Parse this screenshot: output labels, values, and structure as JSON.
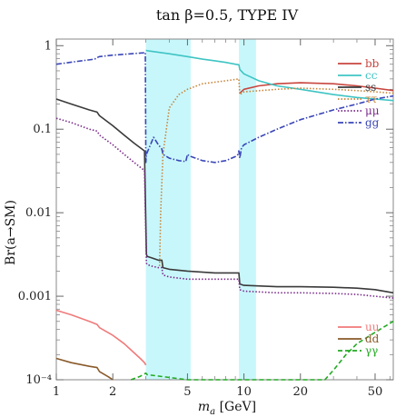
{
  "chart_data": {
    "type": "line",
    "title": "tan β=0.5, TYPE IV",
    "xlabel": "m_a [GeV]",
    "ylabel": "Br(a→SM)",
    "xscale": "log",
    "yscale": "log",
    "xlim": [
      1,
      62.5
    ],
    "ylim": [
      0.0001,
      1.2
    ],
    "xticks": [
      {
        "value": 1,
        "label": "1"
      },
      {
        "value": 2,
        "label": "2"
      },
      {
        "value": 5,
        "label": "5"
      },
      {
        "value": 10,
        "label": "10"
      },
      {
        "value": 20,
        "label": "20"
      },
      {
        "value": 50,
        "label": "50"
      }
    ],
    "yticks": [
      {
        "value": 1,
        "label": "1"
      },
      {
        "value": 0.1,
        "label": "0.1"
      },
      {
        "value": 0.01,
        "label": "0.01"
      },
      {
        "value": 0.001,
        "label": "0.001"
      },
      {
        "value": 0.0001,
        "label": "10⁻⁴"
      }
    ],
    "shaded_bands": [
      {
        "x": [
          3.0,
          5.2
        ],
        "color": "#c8f7fb"
      },
      {
        "x": [
          9.4,
          11.6
        ],
        "color": "#c8f7fb"
      }
    ],
    "legend_upper": "top-right",
    "legend_lower": "bottom-right",
    "series": [
      {
        "name": "bb",
        "color": "#c8463f",
        "dash": "solid",
        "legend": "upper",
        "x": [
          9.5,
          10,
          12,
          15,
          20,
          30,
          40,
          50,
          62.5
        ],
        "y": [
          0.27,
          0.3,
          0.33,
          0.35,
          0.36,
          0.35,
          0.33,
          0.31,
          0.29
        ]
      },
      {
        "name": "cc",
        "color": "#3fc4c4",
        "dash": "solid",
        "legend": "upper",
        "x": [
          3.0,
          3.05,
          4,
          5,
          6,
          7,
          8,
          9,
          9.4,
          9.5,
          10,
          12,
          15,
          20,
          30,
          40,
          50,
          62.5
        ],
        "y": [
          0.88,
          0.87,
          0.8,
          0.74,
          0.69,
          0.66,
          0.63,
          0.6,
          0.59,
          0.52,
          0.46,
          0.38,
          0.33,
          0.3,
          0.26,
          0.24,
          0.23,
          0.22
        ]
      },
      {
        "name": "ss",
        "color": "#3a3a3a",
        "dash": "solid",
        "legend": "upper",
        "x": [
          1,
          1.2,
          1.5,
          1.65,
          1.7,
          2,
          2.3,
          2.6,
          2.8,
          2.95,
          3.02,
          3.05,
          3.2,
          3.5,
          3.65,
          3.7,
          4,
          5,
          7,
          9,
          9.4,
          9.5,
          10,
          15,
          20,
          30,
          40,
          50,
          62.5
        ],
        "y": [
          0.23,
          0.2,
          0.17,
          0.16,
          0.145,
          0.11,
          0.085,
          0.068,
          0.06,
          0.055,
          0.0032,
          0.003,
          0.0029,
          0.0027,
          0.0027,
          0.0022,
          0.0021,
          0.002,
          0.0019,
          0.0019,
          0.0019,
          0.0014,
          0.00135,
          0.0013,
          0.0013,
          0.00128,
          0.00125,
          0.0012,
          0.0011
        ]
      },
      {
        "name": "ττ",
        "color": "#c8843a",
        "dash": "dotted",
        "legend": "upper",
        "x": [
          3.55,
          3.6,
          3.7,
          4,
          4.5,
          5,
          6,
          8,
          9.4,
          9.5,
          10,
          15,
          20,
          30,
          40,
          50,
          62.5
        ],
        "y": [
          0.0023,
          0.01,
          0.05,
          0.18,
          0.26,
          0.3,
          0.35,
          0.38,
          0.4,
          0.26,
          0.28,
          0.3,
          0.31,
          0.3,
          0.29,
          0.28,
          0.27
        ]
      },
      {
        "name": "μμ",
        "color": "#7a2a8a",
        "dash": "dotted",
        "legend": "upper",
        "x": [
          1,
          1.2,
          1.5,
          1.65,
          1.7,
          2,
          2.3,
          2.6,
          2.8,
          2.95,
          3.02,
          3.05,
          3.2,
          3.5,
          3.65,
          3.7,
          4,
          5,
          7,
          9,
          9.4,
          9.5,
          10,
          15,
          20,
          30,
          40,
          50,
          62.5
        ],
        "y": [
          0.135,
          0.12,
          0.1,
          0.095,
          0.085,
          0.065,
          0.05,
          0.04,
          0.035,
          0.032,
          0.0025,
          0.0024,
          0.0023,
          0.0022,
          0.0022,
          0.0018,
          0.0017,
          0.0016,
          0.0016,
          0.0016,
          0.0016,
          0.0012,
          0.00115,
          0.0011,
          0.0011,
          0.00108,
          0.00105,
          0.001,
          0.00095
        ]
      },
      {
        "name": "gg",
        "color": "#3a46b8",
        "dash": "dashdot",
        "legend": "upper",
        "x": [
          1,
          1.3,
          1.6,
          1.65,
          1.7,
          2,
          2.5,
          2.9,
          2.98,
          3.0,
          3.02,
          3.3,
          3.5,
          3.65,
          3.7,
          4,
          4.5,
          4.9,
          5.0,
          5.1,
          6,
          7,
          8,
          9,
          9.3,
          9.4,
          9.5,
          9.7,
          10,
          12,
          15,
          20,
          30,
          40,
          50,
          62.5
        ],
        "y": [
          0.6,
          0.65,
          0.69,
          0.72,
          0.74,
          0.77,
          0.8,
          0.82,
          0.83,
          0.04,
          0.05,
          0.08,
          0.065,
          0.058,
          0.05,
          0.045,
          0.042,
          0.041,
          0.05,
          0.048,
          0.042,
          0.04,
          0.042,
          0.047,
          0.05,
          0.055,
          0.045,
          0.06,
          0.065,
          0.08,
          0.1,
          0.13,
          0.17,
          0.2,
          0.23,
          0.25
        ]
      },
      {
        "name": "uu",
        "color": "#f07a7a",
        "dash": "solid",
        "legend": "lower",
        "x": [
          1,
          1.2,
          1.5,
          1.65,
          1.7,
          2,
          2.3,
          2.6,
          2.8,
          2.95,
          3.0
        ],
        "y": [
          0.00068,
          0.0006,
          0.0005,
          0.00046,
          0.00042,
          0.00034,
          0.00027,
          0.00021,
          0.00018,
          0.00016,
          0.00015
        ]
      },
      {
        "name": "dd",
        "color": "#8a5a2a",
        "dash": "solid",
        "legend": "lower",
        "x": [
          1,
          1.2,
          1.5,
          1.65,
          1.7,
          1.9,
          2.0
        ],
        "y": [
          0.00018,
          0.00016,
          0.000145,
          0.00014,
          0.000125,
          0.000108,
          0.0001
        ]
      },
      {
        "name": "γγ",
        "color": "#22aa22",
        "dash": "dashed",
        "legend": "lower",
        "x": [
          2.5,
          2.8,
          3.0,
          3.05,
          5,
          10,
          20,
          27,
          30,
          35,
          40,
          50,
          62.5
        ],
        "y": [
          0.0001,
          0.00011,
          0.00012,
          0.000115,
          0.0001,
          9e-05,
          9.5e-05,
          0.0001,
          0.00013,
          0.0002,
          0.00027,
          0.00037,
          0.0005
        ]
      }
    ]
  }
}
